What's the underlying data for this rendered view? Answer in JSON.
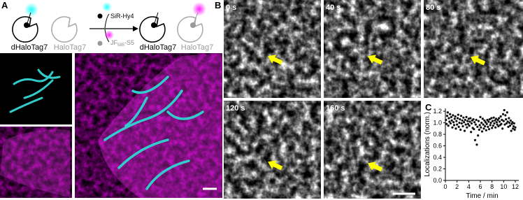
{
  "panel_labels": [
    "A",
    "B",
    "C"
  ],
  "schematic": {
    "labels": [
      "dHaloTag7",
      "HaloTag7",
      "dHaloTag7",
      "HaloTag7"
    ],
    "ligand_1": "SiR-Hy4",
    "ligand_2": {
      "name": "JF",
      "subscript": "585",
      "suffix": "-S5"
    }
  },
  "timelapse": {
    "times": [
      "0 s",
      "40 s",
      "80 s",
      "120 s",
      "160 s"
    ]
  },
  "chart_data": {
    "type": "scatter",
    "x_label": "Time / min",
    "y_label": "Localizations (norm.)",
    "xlim": [
      0,
      12.6
    ],
    "ylim": [
      0,
      1.25
    ],
    "xticks": [
      0,
      2,
      4,
      6,
      8,
      10,
      12
    ],
    "yticks": [
      {
        "value": 0,
        "label": "0.0"
      },
      0.2,
      0.4,
      0.6,
      0.8,
      {
        "value": 1,
        "label": "1.0"
      },
      1.2
    ],
    "color": "#111111",
    "x": [
      0.1,
      0.2,
      0.3,
      0.4,
      0.5,
      0.6,
      0.7,
      0.8,
      0.9,
      1.0,
      1.1,
      1.2,
      1.3,
      1.4,
      1.5,
      1.6,
      1.7,
      1.8,
      1.9,
      2.0,
      2.1,
      2.2,
      2.3,
      2.4,
      2.5,
      2.6,
      2.7,
      2.8,
      2.9,
      3.0,
      3.1,
      3.2,
      3.3,
      3.4,
      3.5,
      3.6,
      3.7,
      3.8,
      3.9,
      4.0,
      4.1,
      4.2,
      4.3,
      4.4,
      4.5,
      4.6,
      4.7,
      4.8,
      4.9,
      5.0,
      5.1,
      5.2,
      5.3,
      5.4,
      5.5,
      5.6,
      5.7,
      5.8,
      5.9,
      6.0,
      6.1,
      6.2,
      6.3,
      6.4,
      6.5,
      6.6,
      6.7,
      6.8,
      6.9,
      7.0,
      7.1,
      7.2,
      7.3,
      7.4,
      7.5,
      7.6,
      7.7,
      7.8,
      7.9,
      8.0,
      8.1,
      8.2,
      8.3,
      8.4,
      8.5,
      8.6,
      8.7,
      8.8,
      8.9,
      9.0,
      9.1,
      9.2,
      9.3,
      9.4,
      9.5,
      9.6,
      9.7,
      9.8,
      9.9,
      10.0,
      10.1,
      10.2,
      10.3,
      10.4,
      10.5,
      10.6,
      10.7,
      10.8,
      10.9,
      11.0,
      11.1,
      11.2,
      11.3,
      11.4,
      11.5,
      11.6,
      11.7,
      11.8,
      11.9,
      12.0
    ],
    "values": [
      1.05,
      0.98,
      1.12,
      1.18,
      0.95,
      1.08,
      1.02,
      1.15,
      0.99,
      1.1,
      1.04,
      0.92,
      1.13,
      1.01,
      0.96,
      1.07,
      1.11,
      0.9,
      1.03,
      0.97,
      1.08,
      1.14,
      0.93,
      1.0,
      1.06,
      0.88,
      1.12,
      0.99,
      1.04,
      0.94,
      1.09,
      1.01,
      0.86,
      1.05,
      0.97,
      1.1,
      0.92,
      1.03,
      0.98,
      1.07,
      0.95,
      1.02,
      1.08,
      0.84,
      0.99,
      1.04,
      0.91,
      1.06,
      0.89,
      1.01,
      0.7,
      0.97,
      1.05,
      0.62,
      0.93,
      0.78,
      1.03,
      0.88,
      0.96,
      1.1,
      0.92,
      1.0,
      0.85,
      1.07,
      0.97,
      0.9,
      1.04,
      0.94,
      1.01,
      0.87,
      0.98,
      1.05,
      0.93,
      1.02,
      0.89,
      1.06,
      0.96,
      1.0,
      1.08,
      0.91,
      1.03,
      0.95,
      1.09,
      0.99,
      1.04,
      0.92,
      1.07,
      1.01,
      0.97,
      1.05,
      0.94,
      1.08,
      1.02,
      0.96,
      1.11,
      0.98,
      1.05,
      0.9,
      1.15,
      1.03,
      1.22,
      0.97,
      1.13,
      1.06,
      0.99,
      1.18,
      1.02,
      0.93,
      1.08,
      1.0,
      0.95,
      1.04,
      0.86,
      0.98,
      1.01,
      0.9,
      0.94,
      0.99,
      0.88,
      0.92
    ]
  }
}
